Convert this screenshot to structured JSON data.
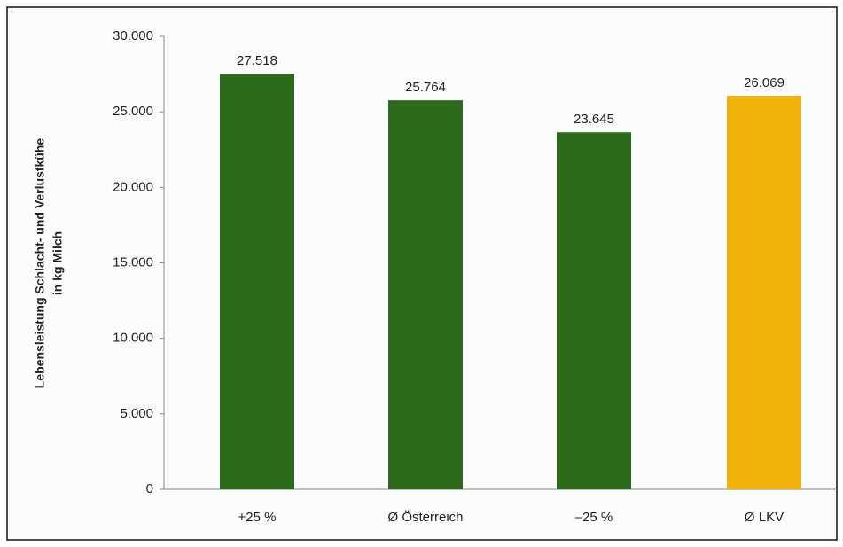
{
  "chart_data": {
    "type": "bar",
    "y_label": [
      "Lebensleistung Schlacht- und Verlustkühe",
      "in kg Milch"
    ],
    "categories": [
      "+25 %",
      "Ø Österreich",
      "–25 %",
      "Ø LKV"
    ],
    "values": [
      27518,
      25764,
      23645,
      26069
    ],
    "value_labels": [
      "27.518",
      "25.764",
      "23.645",
      "26.069"
    ],
    "colors": [
      "#2c6a1c",
      "#2c6a1c",
      "#2c6a1c",
      "#efb30c"
    ],
    "ylim": [
      0,
      30000
    ],
    "yticks": [
      {
        "value": 0,
        "label": "0"
      },
      {
        "value": 5000,
        "label": "5.000"
      },
      {
        "value": 10000,
        "label": "10.000"
      },
      {
        "value": 15000,
        "label": "15.000"
      },
      {
        "value": 20000,
        "label": "20.000"
      },
      {
        "value": 25000,
        "label": "25.000"
      },
      {
        "value": 30000,
        "label": "30.000"
      }
    ],
    "grid": false
  }
}
